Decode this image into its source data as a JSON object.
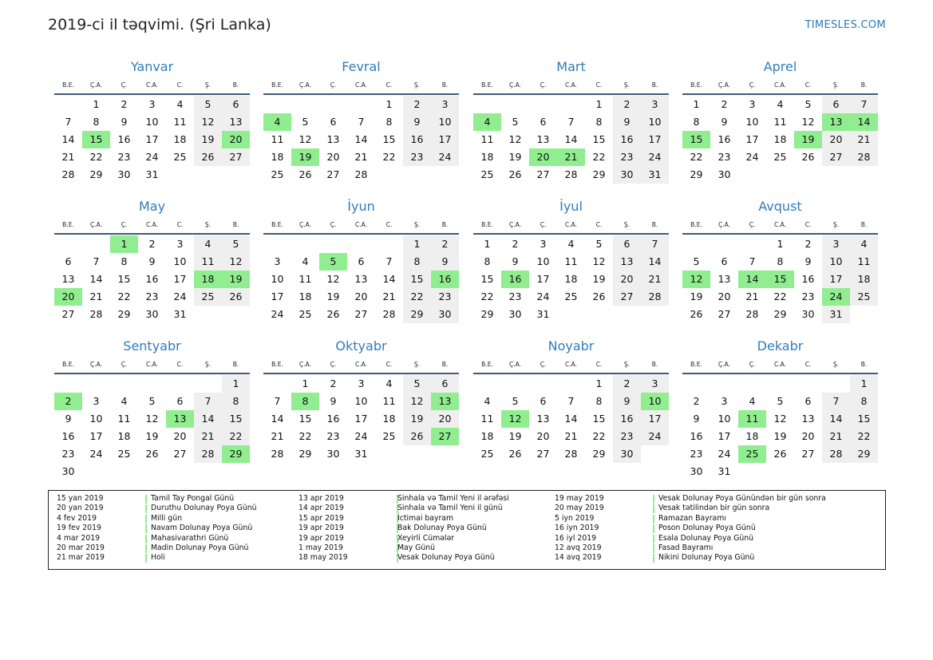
{
  "title": "2019-ci il təqvimi. (Şri Lanka)",
  "brand": "TIMESLES.COM",
  "colors": {
    "holiday": "#90ee90",
    "weekend": "#efefef",
    "month_name": "#2f7cbc"
  },
  "weekdays": [
    "B.E.",
    "Ç.A.",
    "Ç.",
    "C.A.",
    "C.",
    "Ş.",
    "B."
  ],
  "months": [
    {
      "name": "Yanvar",
      "days": 31,
      "start": 1,
      "holidays": [
        15,
        20
      ]
    },
    {
      "name": "Fevral",
      "days": 28,
      "start": 4,
      "holidays": [
        4,
        19
      ]
    },
    {
      "name": "Mart",
      "days": 31,
      "start": 4,
      "holidays": [
        4,
        20,
        21
      ]
    },
    {
      "name": "Aprel",
      "days": 30,
      "start": 0,
      "holidays": [
        13,
        14,
        15,
        19
      ]
    },
    {
      "name": "May",
      "days": 31,
      "start": 2,
      "holidays": [
        1,
        18,
        19,
        20
      ]
    },
    {
      "name": "İyun",
      "days": 30,
      "start": 5,
      "holidays": [
        5,
        16
      ]
    },
    {
      "name": "İyul",
      "days": 31,
      "start": 0,
      "holidays": [
        16
      ]
    },
    {
      "name": "Avqust",
      "days": 31,
      "start": 3,
      "holidays": [
        12,
        14,
        15,
        24
      ]
    },
    {
      "name": "Sentyabr",
      "days": 30,
      "start": 6,
      "holidays": [
        2,
        13,
        29
      ]
    },
    {
      "name": "Oktyabr",
      "days": 31,
      "start": 1,
      "holidays": [
        8,
        13,
        27
      ]
    },
    {
      "name": "Noyabr",
      "days": 30,
      "start": 4,
      "holidays": [
        10,
        12
      ]
    },
    {
      "name": "Dekabr",
      "days": 31,
      "start": 6,
      "holidays": [
        11,
        25
      ]
    }
  ],
  "holiday_list": [
    [
      {
        "date": "15 yan 2019",
        "name": "Tamil Tay Pongal Günü"
      },
      {
        "date": "20 yan 2019",
        "name": "Duruthu Dolunay Poya Günü"
      },
      {
        "date": "4 fev 2019",
        "name": "Milli gün"
      },
      {
        "date": "19 fev 2019",
        "name": "Navam Dolunay Poya Günü"
      },
      {
        "date": "4 mar 2019",
        "name": "Mahasivarathri Günü"
      },
      {
        "date": "20 mar 2019",
        "name": "Madin Dolunay Poya Günü"
      },
      {
        "date": "21 mar 2019",
        "name": "Holi"
      }
    ],
    [
      {
        "date": "13 apr 2019",
        "name": "Sinhala və Tamil Yeni il ərəfəsi"
      },
      {
        "date": "14 apr 2019",
        "name": "Sinhala və Tamil Yeni il günü"
      },
      {
        "date": "15 apr 2019",
        "name": "İctimai bayram"
      },
      {
        "date": "19 apr 2019",
        "name": "Bak Dolunay Poya Günü"
      },
      {
        "date": "19 apr 2019",
        "name": "Xeyirli Cümələr"
      },
      {
        "date": "1 may 2019",
        "name": "May Günü"
      },
      {
        "date": "18 may 2019",
        "name": "Vesak Dolunay Poya Günü"
      }
    ],
    [
      {
        "date": "19 may 2019",
        "name": "Vesak Dolunay Poya Günündən bir gün sonra"
      },
      {
        "date": "20 may 2019",
        "name": "Vesak tətilindən bir gün sonra"
      },
      {
        "date": "5 iyn 2019",
        "name": "Ramazan Bayramı"
      },
      {
        "date": "16 iyn 2019",
        "name": "Poson Dolunay Poya Günü"
      },
      {
        "date": "16 iyl 2019",
        "name": "Esala Dolunay Poya Günü"
      },
      {
        "date": "12 avq 2019",
        "name": "Fasad Bayramı"
      },
      {
        "date": "14 avq 2019",
        "name": "Nikini Dolunay Poya Günü"
      }
    ]
  ]
}
